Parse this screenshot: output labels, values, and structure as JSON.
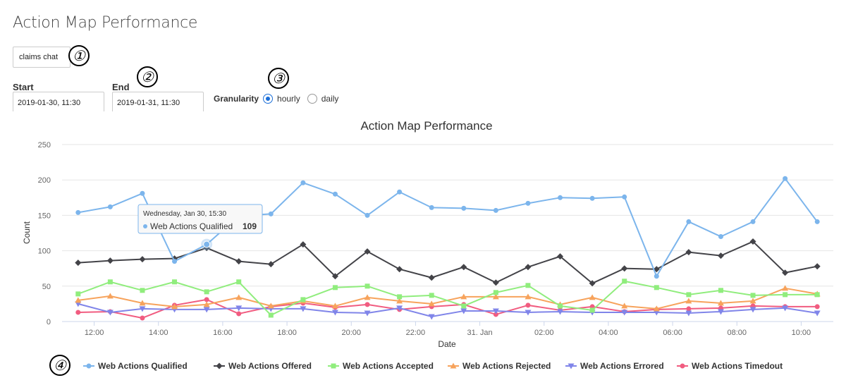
{
  "page": {
    "title": "Action Map Performance"
  },
  "filter": {
    "select_value": "claims chat"
  },
  "start": {
    "label": "Start",
    "value": "2019-01-30, 11:30"
  },
  "end": {
    "label": "End",
    "value": "2019-01-31, 11:30"
  },
  "granularity": {
    "label": "Granularity",
    "options": [
      "hourly",
      "daily"
    ],
    "selected": "hourly"
  },
  "badges": [
    "①",
    "②",
    "③",
    "④"
  ],
  "tooltip": {
    "header": "Wednesday, Jan 30, 15:30",
    "series": "Web Actions Qualified",
    "value": "109"
  },
  "chart_data": {
    "type": "line",
    "title": "Action Map Performance",
    "xlabel": "Date",
    "ylabel": "Count",
    "ylim": [
      0,
      250
    ],
    "yticks": [
      "0",
      "50",
      "100",
      "150",
      "200",
      "250"
    ],
    "x": [
      "2019-01-30 11:30",
      "2019-01-30 12:30",
      "2019-01-30 13:30",
      "2019-01-30 14:30",
      "2019-01-30 15:30",
      "2019-01-30 16:30",
      "2019-01-30 17:30",
      "2019-01-30 18:30",
      "2019-01-30 19:30",
      "2019-01-30 20:30",
      "2019-01-30 21:30",
      "2019-01-30 22:30",
      "2019-01-30 23:30",
      "2019-01-31 00:30",
      "2019-01-31 01:30",
      "2019-01-31 02:30",
      "2019-01-31 03:30",
      "2019-01-31 04:30",
      "2019-01-31 05:30",
      "2019-01-31 06:30",
      "2019-01-31 07:30",
      "2019-01-31 08:30",
      "2019-01-31 09:30",
      "2019-01-31 10:30"
    ],
    "xtick_labels": [
      "12:00",
      "14:00",
      "16:00",
      "18:00",
      "20:00",
      "22:00",
      "31. Jan",
      "02:00",
      "04:00",
      "06:00",
      "08:00",
      "10:00"
    ],
    "grid": true,
    "legend_position": "bottom",
    "series": [
      {
        "name": "Web Actions Qualified",
        "color": "#7cb5ec",
        "marker": "circle",
        "values": [
          154,
          162,
          181,
          85,
          109,
          149,
          152,
          196,
          180,
          150,
          183,
          161,
          160,
          157,
          167,
          175,
          174,
          176,
          64,
          141,
          120,
          141,
          202,
          141
        ]
      },
      {
        "name": "Web Actions Offered",
        "color": "#434348",
        "marker": "diamond",
        "values": [
          83,
          86,
          88,
          89,
          104,
          85,
          81,
          109,
          64,
          99,
          74,
          62,
          77,
          55,
          77,
          92,
          54,
          75,
          74,
          98,
          93,
          113,
          69,
          78
        ]
      },
      {
        "name": "Web Actions Accepted",
        "color": "#90ed7d",
        "marker": "square",
        "values": [
          39,
          56,
          44,
          56,
          42,
          56,
          9,
          31,
          48,
          50,
          35,
          37,
          22,
          41,
          51,
          22,
          16,
          57,
          48,
          38,
          44,
          37,
          38,
          38
        ]
      },
      {
        "name": "Web Actions Rejected",
        "color": "#f7a35c",
        "marker": "triangle",
        "values": [
          30,
          36,
          26,
          21,
          24,
          34,
          22,
          29,
          22,
          34,
          29,
          25,
          35,
          35,
          35,
          24,
          34,
          22,
          18,
          29,
          26,
          29,
          47,
          39
        ]
      },
      {
        "name": "Web Actions Errored",
        "color": "#8085e9",
        "marker": "triangle-down",
        "values": [
          25,
          13,
          18,
          17,
          17,
          19,
          18,
          18,
          13,
          12,
          19,
          7,
          15,
          15,
          13,
          14,
          13,
          13,
          13,
          12,
          14,
          17,
          19,
          12
        ]
      },
      {
        "name": "Web Actions Timedout",
        "color": "#f15c80",
        "marker": "circle",
        "values": [
          13,
          14,
          5,
          23,
          31,
          11,
          21,
          26,
          20,
          24,
          17,
          21,
          24,
          10,
          23,
          16,
          21,
          14,
          17,
          18,
          19,
          22,
          21,
          21
        ]
      }
    ]
  }
}
